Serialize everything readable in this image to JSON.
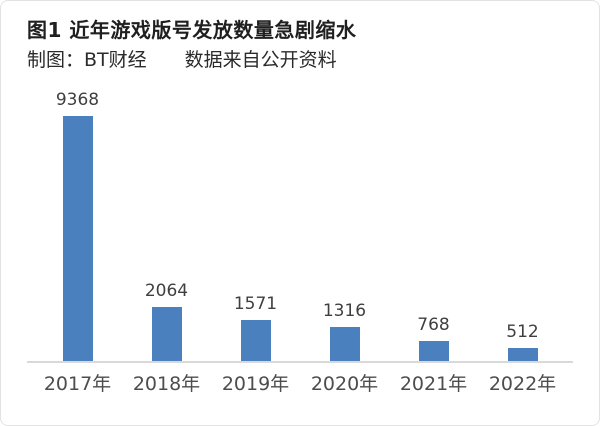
{
  "header": {
    "title": "图1 近年游戏版号发放数量急剧缩水",
    "subtitle": "制图：BT财经　　数据来自公开资料"
  },
  "chart_data": {
    "type": "bar",
    "title": "图1 近年游戏版号发放数量急剧缩水",
    "subtitle": "制图：BT财经　数据来自公开资料",
    "categories": [
      "2017年",
      "2018年",
      "2019年",
      "2020年",
      "2021年",
      "2022年"
    ],
    "values": [
      9368,
      2064,
      1571,
      1316,
      768,
      512
    ],
    "ylim": [
      0,
      9368
    ],
    "xlabel": "",
    "ylabel": "",
    "grid": false,
    "legend": false,
    "data_labels": true,
    "bar_color": "#4a80bd",
    "value_label_color": "#3f3f3f",
    "axis_label_color": "#4d4d4d",
    "axis_line_color": "#d9d9d9"
  }
}
